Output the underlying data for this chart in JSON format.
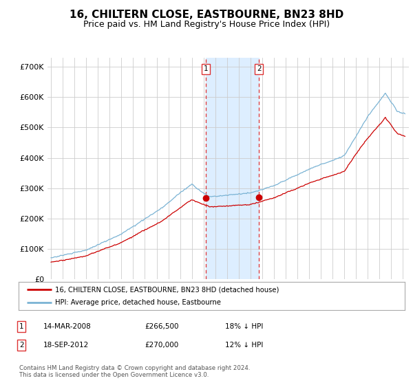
{
  "title": "16, CHILTERN CLOSE, EASTBOURNE, BN23 8HD",
  "subtitle": "Price paid vs. HM Land Registry's House Price Index (HPI)",
  "title_fontsize": 11,
  "subtitle_fontsize": 9,
  "ytick_vals": [
    0,
    100000,
    200000,
    300000,
    400000,
    500000,
    600000,
    700000
  ],
  "ylim": [
    0,
    730000
  ],
  "xlim_start": 1994.7,
  "xlim_end": 2025.5,
  "background_color": "#ffffff",
  "grid_color": "#cccccc",
  "hpi_color": "#7ab3d4",
  "price_color": "#cc0000",
  "transaction1": {
    "date": 2008.2,
    "price": 266500,
    "label": "1"
  },
  "transaction2": {
    "date": 2012.72,
    "price": 270000,
    "label": "2"
  },
  "shade_color": "#ddeeff",
  "vline_color": "#dd3333",
  "legend_price_label": "16, CHILTERN CLOSE, EASTBOURNE, BN23 8HD (detached house)",
  "legend_hpi_label": "HPI: Average price, detached house, Eastbourne",
  "footnote": "Contains HM Land Registry data © Crown copyright and database right 2024.\nThis data is licensed under the Open Government Licence v3.0.",
  "table_rows": [
    [
      "1",
      "14-MAR-2008",
      "£266,500",
      "18% ↓ HPI"
    ],
    [
      "2",
      "18-SEP-2012",
      "£270,000",
      "12% ↓ HPI"
    ]
  ]
}
